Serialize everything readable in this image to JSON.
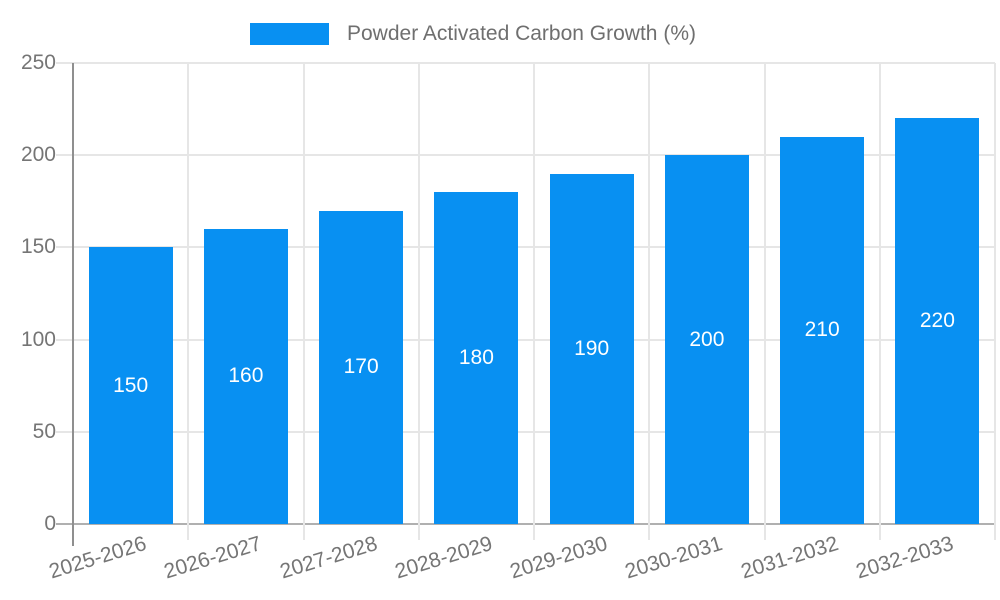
{
  "chart_data": {
    "type": "bar",
    "title": "Powder Activated Carbon Growth (%)",
    "categories": [
      "2025-2026",
      "2026-2027",
      "2027-2028",
      "2028-2029",
      "2029-2030",
      "2030-2031",
      "2031-2032",
      "2032-2033"
    ],
    "values": [
      150,
      160,
      170,
      180,
      190,
      200,
      210,
      220
    ],
    "xlabel": "",
    "ylabel": "",
    "ylim": [
      0,
      250
    ],
    "yticks": [
      0,
      50,
      100,
      150,
      200,
      250
    ],
    "grid": true,
    "legend_position": "top",
    "value_labels_inside_bars": true
  },
  "colors": {
    "bar": "#0890f2",
    "bar_value_text": "#ffffff",
    "axis_text": "#757575",
    "legend_text": "#6f6f6f",
    "gridline": "#e6e6e6",
    "y_axis_line": "#8f8f8f",
    "baseline": "#b0b0b0",
    "background": "#ffffff"
  }
}
